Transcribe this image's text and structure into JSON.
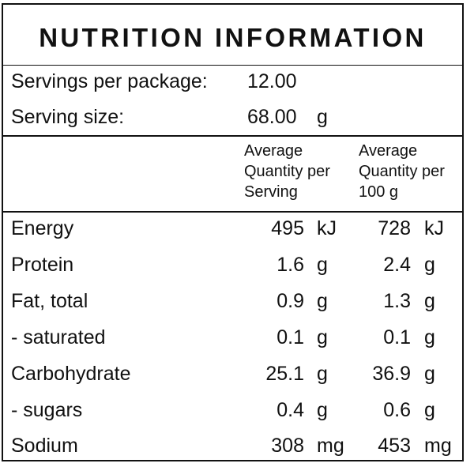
{
  "title": "NUTRITION INFORMATION",
  "servings": {
    "per_package_label": "Servings per package:",
    "per_package_value": "12.00",
    "size_label": "Serving size:",
    "size_value": "68.00",
    "size_unit": "g"
  },
  "columns": {
    "per_serving": [
      "Average",
      "Quantity per",
      "Serving"
    ],
    "per_100g": [
      "Average",
      "Quantity per",
      "100 g"
    ]
  },
  "rows": [
    {
      "label": "Energy",
      "serving": "495",
      "serving_unit": "kJ",
      "per100": "728",
      "per100_unit": "kJ"
    },
    {
      "label": "Protein",
      "serving": "1.6",
      "serving_unit": "g",
      "per100": "2.4",
      "per100_unit": "g"
    },
    {
      "label": "Fat, total",
      "serving": "0.9",
      "serving_unit": "g",
      "per100": "1.3",
      "per100_unit": "g"
    },
    {
      "label": "- saturated",
      "serving": "0.1",
      "serving_unit": "g",
      "per100": "0.1",
      "per100_unit": "g"
    },
    {
      "label": "Carbohydrate",
      "serving": "25.1",
      "serving_unit": "g",
      "per100": "36.9",
      "per100_unit": "g"
    },
    {
      "label": "- sugars",
      "serving": "0.4",
      "serving_unit": "g",
      "per100": "0.6",
      "per100_unit": "g"
    },
    {
      "label": "Sodium",
      "serving": "308",
      "serving_unit": "mg",
      "per100": "453",
      "per100_unit": "mg"
    }
  ]
}
